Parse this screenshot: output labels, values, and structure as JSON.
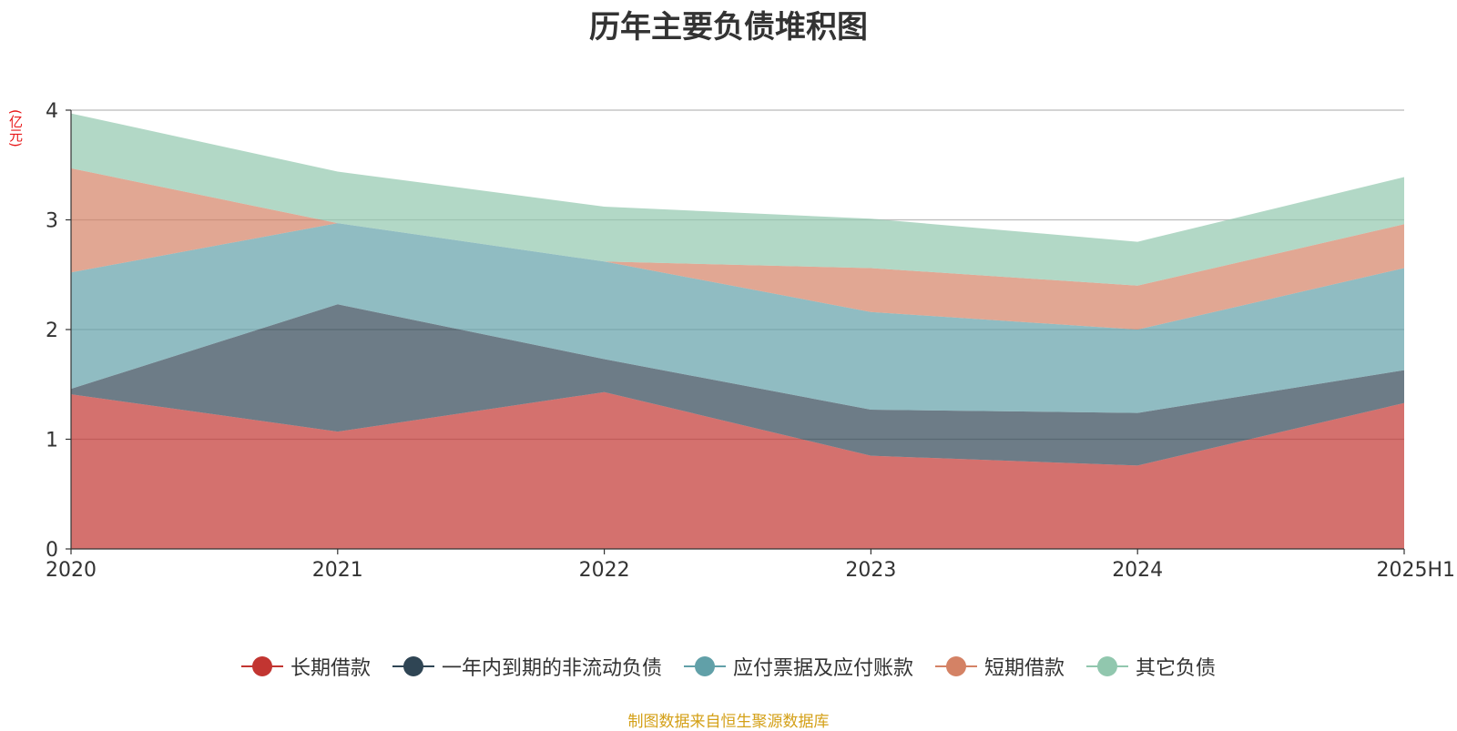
{
  "title": "历年主要负债堆积图",
  "unit_label": "(亿元)",
  "source": "制图数据来自恒生聚源数据库",
  "colors": {
    "长期借款": "#c23531",
    "一年内到期的非流动负债": "#2f4554",
    "应付票据及应付账款": "#61a0a8",
    "短期借款": "#d48265",
    "其它负债": "#91c7ae"
  },
  "chart_data": {
    "type": "area",
    "stacked": true,
    "title": "历年主要负债堆积图",
    "ylabel": "(亿元)",
    "categories": [
      "2020",
      "2021",
      "2022",
      "2023",
      "2024",
      "2025H1"
    ],
    "ylim": [
      0,
      4
    ],
    "yticks": [
      0,
      1,
      2,
      3,
      4
    ],
    "grid": true,
    "legend_position": "bottom",
    "series": [
      {
        "name": "长期借款",
        "values": [
          1.41,
          1.07,
          1.43,
          0.85,
          0.76,
          1.33
        ]
      },
      {
        "name": "一年内到期的非流动负债",
        "values": [
          0.05,
          1.16,
          0.3,
          0.42,
          0.48,
          0.3
        ]
      },
      {
        "name": "应付票据及应付账款",
        "values": [
          1.06,
          0.74,
          0.89,
          0.89,
          0.76,
          0.93
        ]
      },
      {
        "name": "短期借款",
        "values": [
          0.95,
          0.0,
          0.0,
          0.4,
          0.4,
          0.4
        ]
      },
      {
        "name": "其它负债",
        "values": [
          0.5,
          0.47,
          0.5,
          0.45,
          0.4,
          0.43
        ]
      }
    ]
  }
}
